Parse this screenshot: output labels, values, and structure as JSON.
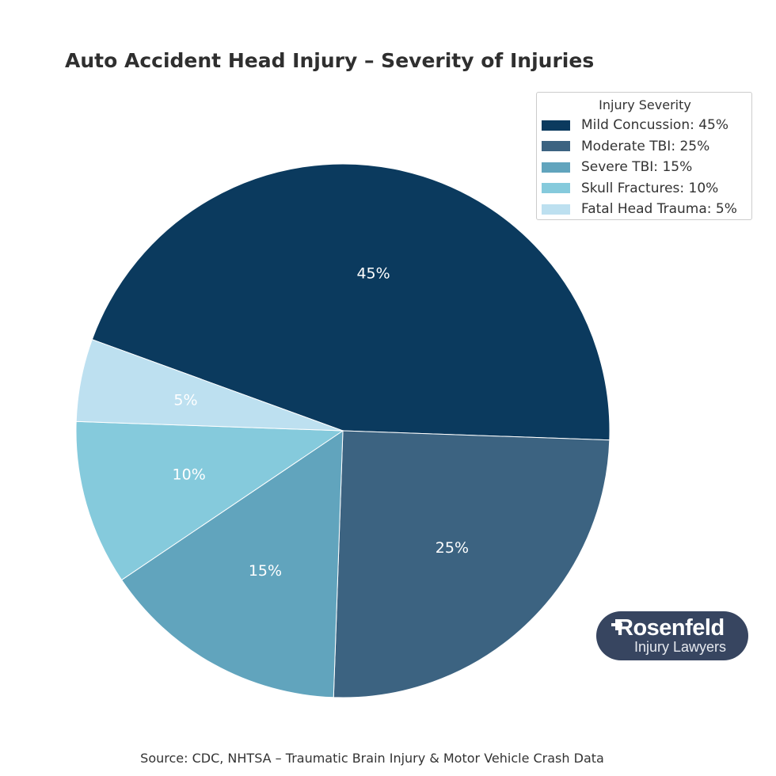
{
  "chart_data": {
    "type": "pie",
    "title": "Auto Accident Head Injury – Severity of Injuries",
    "categories": [
      "Mild Concussion",
      "Moderate TBI",
      "Severe TBI",
      "Skull Fractures",
      "Fatal Head Trauma"
    ],
    "values": [
      45,
      25,
      15,
      10,
      5
    ],
    "slice_labels": [
      "45%",
      "25%",
      "15%",
      "10%",
      "5%"
    ],
    "colors": [
      "#0b3a5e",
      "#3c6381",
      "#61a4bd",
      "#85cadc",
      "#bde0f0"
    ],
    "legend": {
      "title": "Injury Severity",
      "placement": "top-right",
      "entries": [
        "Mild Concussion: 45%",
        "Moderate TBI: 25%",
        "Severe TBI: 15%",
        "Skull Fractures: 10%",
        "Fatal Head Trauma: 5%"
      ]
    },
    "source": "Source: CDC, NHTSA – Traumatic Brain Injury & Motor Vehicle Crash Data"
  },
  "logo": {
    "name": "Rosenfeld",
    "subtitle": "Injury Lawyers",
    "background": "#374560"
  }
}
